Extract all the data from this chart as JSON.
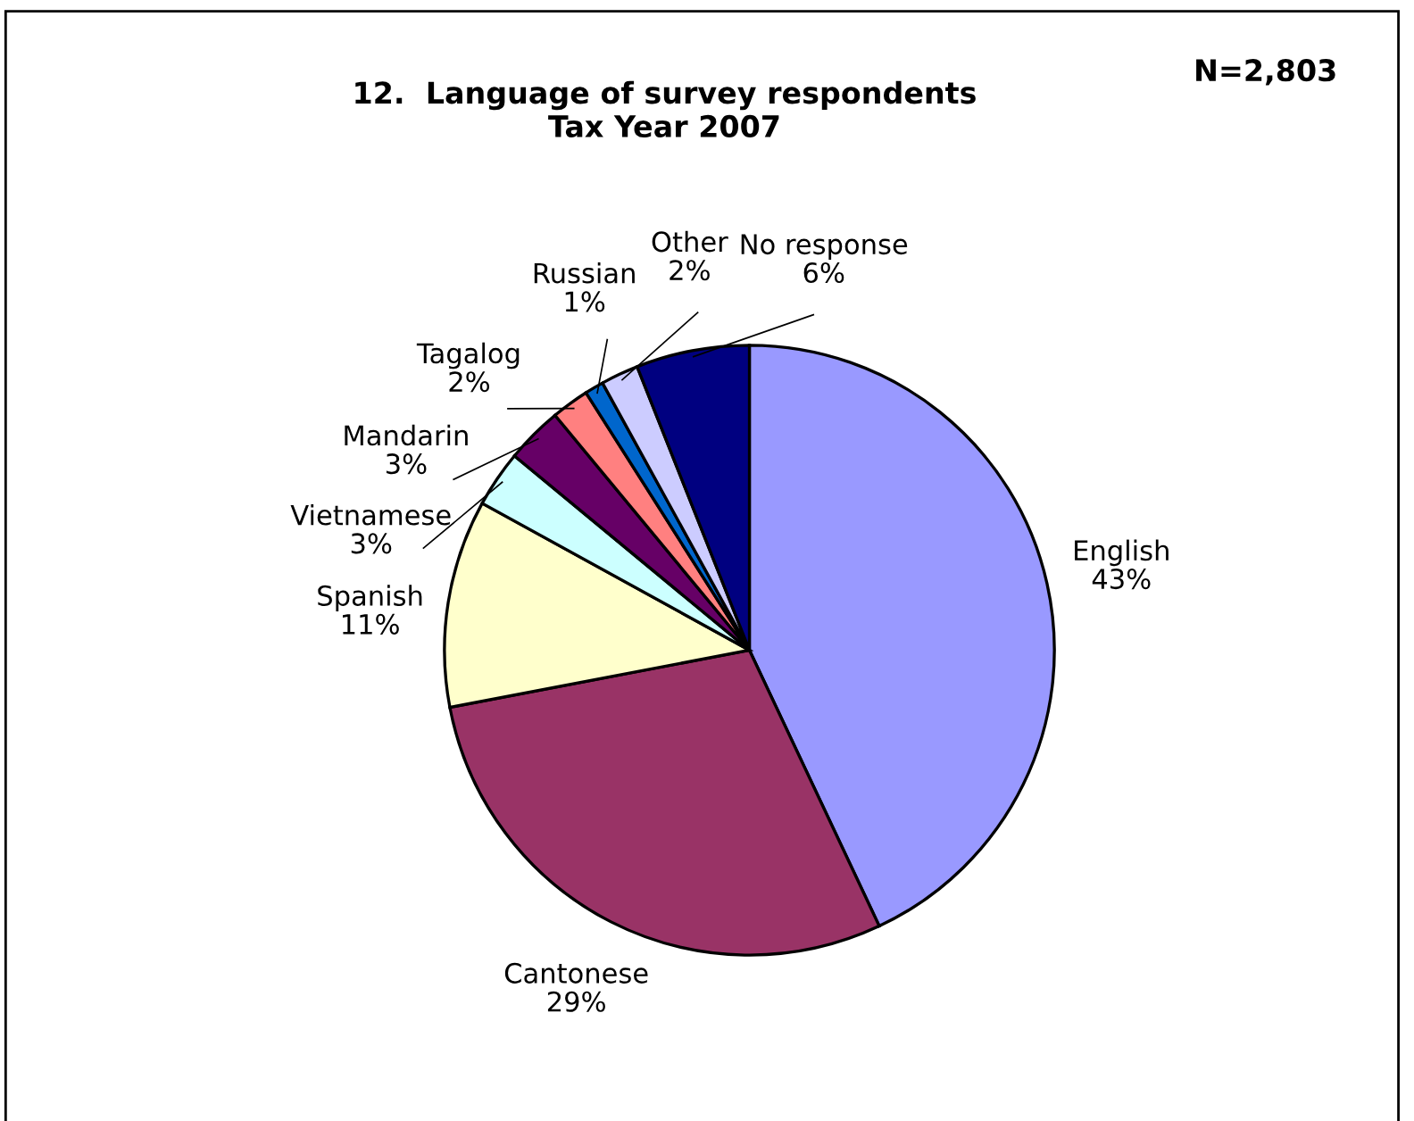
{
  "chart_data": {
    "type": "pie",
    "title": "12.  Language of survey respondents\nTax Year 2007",
    "annotations": [
      "N=2,803"
    ],
    "categories": [
      "English",
      "Cantonese",
      "Spanish",
      "Vietnamese",
      "Mandarin",
      "Tagalog",
      "Russian",
      "Other",
      "No response"
    ],
    "values": [
      43,
      29,
      11,
      3,
      3,
      2,
      1,
      2,
      6
    ],
    "colors": [
      "#9999ff",
      "#993366",
      "#ffffcc",
      "#ccffff",
      "#660066",
      "#ff8080",
      "#0066cc",
      "#ccccff",
      "#000080"
    ],
    "value_labels": [
      "43%",
      "29%",
      "11%",
      "3%",
      "3%",
      "2%",
      "1%",
      "2%",
      "6%"
    ]
  }
}
